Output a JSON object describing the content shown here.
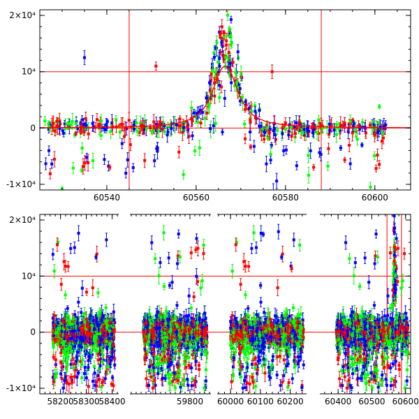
{
  "chart_data": [
    {
      "type": "scatter",
      "title": "",
      "xlabel": "",
      "ylabel": "",
      "xlim": [
        60525,
        60608
      ],
      "ylim": [
        -11000,
        21000
      ],
      "x_ticks": [
        60540,
        60560,
        60580,
        60600
      ],
      "y_ticks": [
        {
          "value": 20000,
          "label": "2×10⁴"
        },
        {
          "value": 10000,
          "label": "10⁴"
        },
        {
          "value": 0,
          "label": "0"
        },
        {
          "value": -10000,
          "label": "-1×10⁴"
        }
      ],
      "reference_lines": {
        "horizontal": [
          0,
          10000
        ],
        "vertical": [
          60545,
          60588
        ]
      },
      "series_colors": [
        "#0000ff",
        "#00ff00",
        "#ff0000"
      ],
      "peak": {
        "x": 60566.5,
        "y": 20000
      },
      "model": "symmetric microlensing-like peak near x = 60566.5, baseline 0"
    },
    {
      "type": "scatter",
      "title": "",
      "xlabel": "",
      "ylabel": "",
      "broken_x_axis": true,
      "segments": [
        {
          "xlim": [
            58120,
            58420
          ],
          "ticks": [
            58200,
            58300,
            58400
          ]
        },
        {
          "xlim": [
            59560,
            59880
          ],
          "ticks": [
            59800
          ]
        },
        {
          "xlim": [
            59960,
            60250
          ],
          "ticks": [
            60000,
            60100,
            60200
          ]
        },
        {
          "xlim": [
            60350,
            60615
          ],
          "ticks": [
            60400,
            60500,
            60600
          ]
        }
      ],
      "ylim": [
        -11000,
        21000
      ],
      "y_ticks": [
        {
          "value": 20000,
          "label": "2×10⁴"
        },
        {
          "value": 10000,
          "label": "10⁴"
        },
        {
          "value": 0,
          "label": "0"
        },
        {
          "value": -10000,
          "label": "-1×10⁴"
        }
      ],
      "reference_lines": {
        "horizontal": [
          0,
          10000
        ],
        "vertical": [
          60545,
          60588
        ]
      },
      "series_colors": [
        "#0000ff",
        "#00ff00",
        "#ff0000"
      ]
    }
  ]
}
